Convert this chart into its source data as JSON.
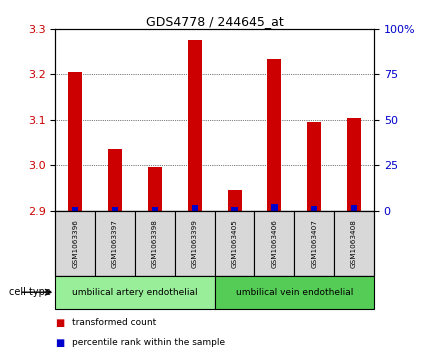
{
  "title": "GDS4778 / 244645_at",
  "samples": [
    "GSM1063396",
    "GSM1063397",
    "GSM1063398",
    "GSM1063399",
    "GSM1063405",
    "GSM1063406",
    "GSM1063407",
    "GSM1063408"
  ],
  "transformed_counts": [
    3.205,
    3.035,
    2.995,
    3.275,
    2.945,
    3.235,
    3.095,
    3.105
  ],
  "percentile_ranks": [
    2.0,
    2.0,
    2.0,
    3.0,
    2.0,
    3.5,
    2.5,
    3.0
  ],
  "ylim_left": [
    2.9,
    3.3
  ],
  "ylim_right": [
    0,
    100
  ],
  "yticks_left": [
    2.9,
    3.0,
    3.1,
    3.2,
    3.3
  ],
  "yticks_right": [
    0,
    25,
    50,
    75,
    100
  ],
  "bar_width": 0.35,
  "red_color": "#cc0000",
  "blue_color": "#0000cc",
  "cell_types": [
    "umbilical artery endothelial",
    "umbilical vein endothelial"
  ],
  "cell_type_ranges": [
    [
      0,
      4
    ],
    [
      4,
      8
    ]
  ],
  "bg_color": "#d8d8d8",
  "green_light": "#99ee99",
  "green_dark": "#55cc55",
  "legend_red": "transformed count",
  "legend_blue": "percentile rank within the sample",
  "left_color": "#cc0000",
  "right_color": "#0000cc"
}
